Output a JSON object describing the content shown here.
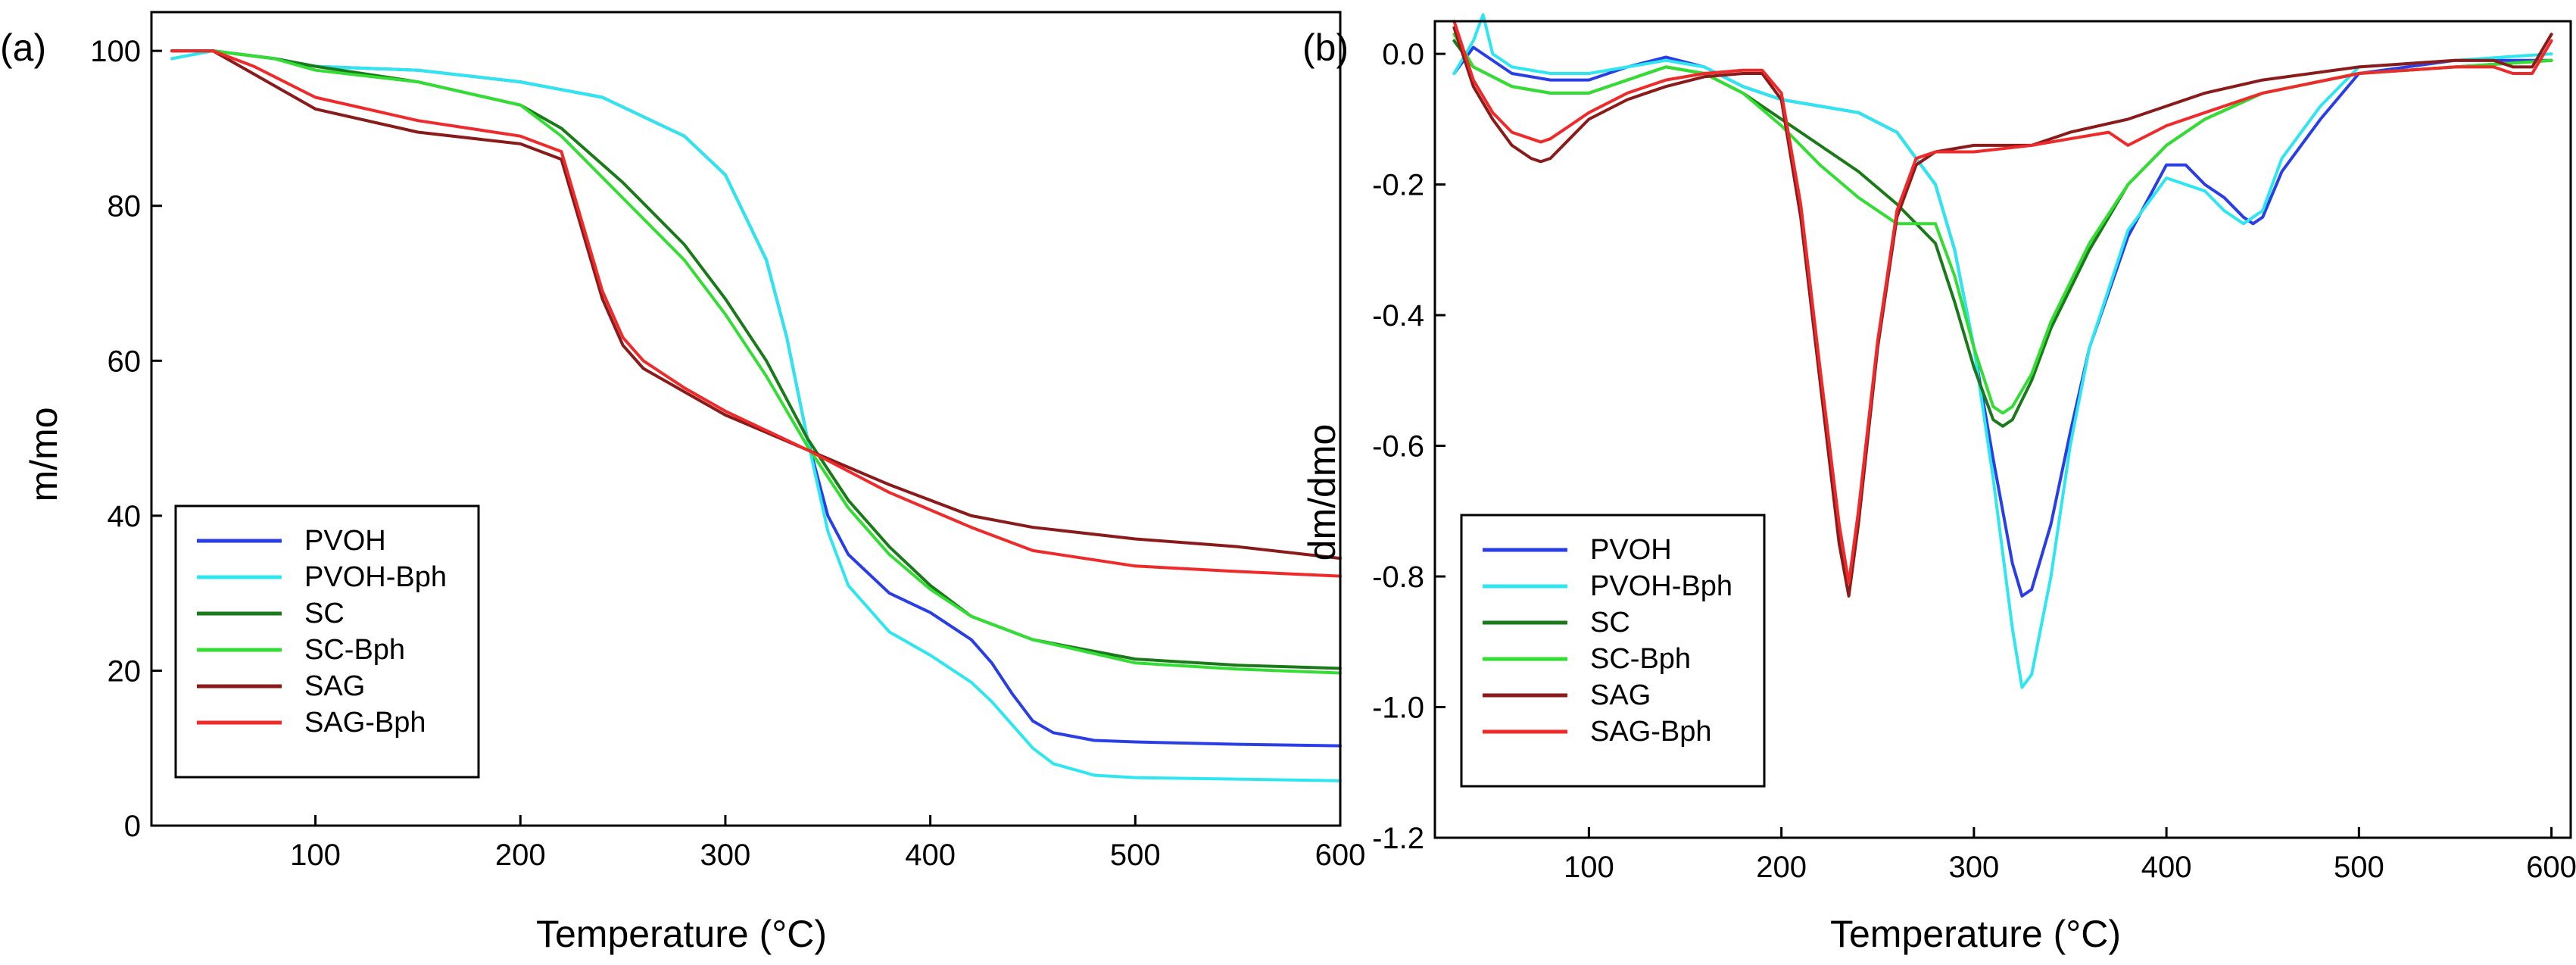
{
  "chart_data": [
    {
      "panel_label": "(a)",
      "type": "line",
      "xlabel": "Temperature (°C)",
      "ylabel": "m/mo",
      "xlim": [
        20,
        600
      ],
      "ylim": [
        0,
        105
      ],
      "xticks": [
        100,
        200,
        300,
        400,
        500,
        600
      ],
      "yticks": [
        0,
        20,
        40,
        60,
        80,
        100
      ],
      "legend_position": "bottom-left",
      "series": [
        {
          "name": "PVOH",
          "color": "#2a3ee6",
          "x": [
            30,
            50,
            80,
            100,
            150,
            200,
            240,
            280,
            300,
            320,
            330,
            340,
            350,
            360,
            380,
            400,
            420,
            430,
            440,
            450,
            460,
            480,
            500,
            550,
            600
          ],
          "y": [
            100,
            100,
            99,
            98,
            97.5,
            96,
            94,
            89,
            84,
            73,
            63,
            50,
            40,
            35,
            30,
            27.5,
            24,
            21,
            17,
            13.5,
            12,
            11,
            10.8,
            10.5,
            10.3
          ]
        },
        {
          "name": "PVOH-Bph",
          "color": "#2ee6f0",
          "x": [
            30,
            50,
            80,
            100,
            150,
            200,
            240,
            280,
            300,
            320,
            330,
            340,
            350,
            360,
            380,
            400,
            420,
            430,
            440,
            450,
            460,
            480,
            500,
            550,
            600
          ],
          "y": [
            99,
            100,
            99,
            98,
            97.5,
            96,
            94,
            89,
            84,
            73,
            63,
            50,
            38,
            31,
            25,
            22,
            18.5,
            16,
            13,
            10,
            8,
            6.5,
            6.2,
            6,
            5.8
          ]
        },
        {
          "name": "SC",
          "color": "#1a7a1a",
          "x": [
            30,
            50,
            80,
            100,
            150,
            200,
            220,
            250,
            280,
            300,
            320,
            340,
            360,
            380,
            400,
            420,
            450,
            500,
            550,
            600
          ],
          "y": [
            100,
            100,
            99,
            98,
            96,
            93,
            90,
            83,
            75,
            68,
            60,
            50,
            42,
            36,
            31,
            27,
            24,
            21.5,
            20.7,
            20.3
          ]
        },
        {
          "name": "SC-Bph",
          "color": "#33dd33",
          "x": [
            30,
            50,
            80,
            100,
            150,
            200,
            220,
            250,
            280,
            300,
            320,
            340,
            360,
            380,
            400,
            420,
            450,
            500,
            550,
            600
          ],
          "y": [
            100,
            100,
            99,
            97.5,
            96,
            93,
            89,
            81,
            73,
            66,
            58,
            49,
            41,
            35,
            30.5,
            27,
            24,
            21,
            20.2,
            19.7
          ]
        },
        {
          "name": "SAG",
          "color": "#8b1a1a",
          "x": [
            30,
            50,
            70,
            100,
            150,
            200,
            220,
            230,
            240,
            250,
            260,
            280,
            300,
            340,
            380,
            420,
            450,
            500,
            550,
            600
          ],
          "y": [
            100,
            100,
            97,
            92.5,
            89.5,
            88,
            86,
            77,
            68,
            62,
            59,
            56,
            53,
            48.5,
            44,
            40,
            38.5,
            37,
            36,
            34.5
          ]
        },
        {
          "name": "SAG-Bph",
          "color": "#ee2a2a",
          "x": [
            30,
            50,
            70,
            100,
            150,
            200,
            220,
            230,
            240,
            250,
            260,
            280,
            300,
            340,
            380,
            420,
            450,
            500,
            550,
            600
          ],
          "y": [
            100,
            100,
            98,
            94,
            91,
            89,
            87,
            78,
            69,
            63,
            60,
            56.5,
            53.5,
            48.5,
            43,
            38.5,
            35.5,
            33.5,
            32.8,
            32.2
          ]
        }
      ]
    },
    {
      "panel_label": "(b)",
      "type": "line",
      "xlabel": "Temperature (°C)",
      "ylabel": "dm/dmo",
      "xlim": [
        20,
        610
      ],
      "ylim": [
        -1.2,
        0.05
      ],
      "xticks": [
        100,
        200,
        300,
        400,
        500,
        600
      ],
      "yticks": [
        0.0,
        -0.2,
        -0.4,
        -0.6,
        -0.8,
        -1.0,
        -1.2
      ],
      "ytick_labels": [
        "0.0",
        "-0.2",
        "-0.4",
        "-0.6",
        "-0.8",
        "-1.0",
        "-1.2"
      ],
      "legend_position": "bottom-left",
      "series": [
        {
          "name": "PVOH",
          "color": "#2a3ee6",
          "x": [
            30,
            40,
            60,
            80,
            100,
            120,
            140,
            160,
            180,
            200,
            220,
            240,
            260,
            280,
            290,
            300,
            310,
            320,
            325,
            330,
            340,
            350,
            360,
            380,
            400,
            410,
            420,
            430,
            440,
            445,
            450,
            460,
            480,
            500,
            550,
            600
          ],
          "y": [
            -0.03,
            0.01,
            -0.03,
            -0.04,
            -0.04,
            -0.02,
            -0.005,
            -0.02,
            -0.05,
            -0.07,
            -0.08,
            -0.09,
            -0.12,
            -0.2,
            -0.3,
            -0.45,
            -0.62,
            -0.78,
            -0.83,
            -0.82,
            -0.72,
            -0.58,
            -0.45,
            -0.28,
            -0.17,
            -0.17,
            -0.2,
            -0.22,
            -0.25,
            -0.26,
            -0.25,
            -0.18,
            -0.1,
            -0.03,
            -0.01,
            -0.01
          ]
        },
        {
          "name": "PVOH-Bph",
          "color": "#2ee6f0",
          "x": [
            30,
            40,
            45,
            50,
            60,
            80,
            100,
            120,
            140,
            160,
            180,
            200,
            220,
            240,
            260,
            280,
            290,
            300,
            310,
            320,
            325,
            330,
            340,
            350,
            360,
            380,
            400,
            420,
            430,
            440,
            445,
            450,
            460,
            480,
            500,
            550,
            600
          ],
          "y": [
            -0.03,
            0.02,
            0.06,
            0.0,
            -0.02,
            -0.03,
            -0.03,
            -0.02,
            -0.01,
            -0.02,
            -0.05,
            -0.07,
            -0.08,
            -0.09,
            -0.12,
            -0.2,
            -0.3,
            -0.45,
            -0.65,
            -0.88,
            -0.97,
            -0.95,
            -0.8,
            -0.6,
            -0.45,
            -0.27,
            -0.19,
            -0.21,
            -0.24,
            -0.26,
            -0.25,
            -0.24,
            -0.16,
            -0.08,
            -0.02,
            -0.01,
            0.0
          ]
        },
        {
          "name": "SC",
          "color": "#1a7a1a",
          "x": [
            30,
            40,
            60,
            80,
            100,
            120,
            140,
            160,
            180,
            200,
            220,
            240,
            260,
            280,
            290,
            300,
            310,
            315,
            320,
            330,
            340,
            360,
            380,
            400,
            420,
            450,
            500,
            550,
            600
          ],
          "y": [
            0.02,
            -0.02,
            -0.05,
            -0.06,
            -0.06,
            -0.04,
            -0.02,
            -0.03,
            -0.06,
            -0.1,
            -0.14,
            -0.18,
            -0.23,
            -0.29,
            -0.38,
            -0.48,
            -0.56,
            -0.57,
            -0.56,
            -0.5,
            -0.42,
            -0.3,
            -0.2,
            -0.14,
            -0.1,
            -0.06,
            -0.03,
            -0.02,
            -0.01
          ]
        },
        {
          "name": "SC-Bph",
          "color": "#33dd33",
          "x": [
            30,
            40,
            60,
            80,
            100,
            120,
            140,
            160,
            180,
            200,
            220,
            240,
            260,
            280,
            290,
            300,
            310,
            315,
            320,
            330,
            340,
            360,
            380,
            400,
            420,
            450,
            500,
            550,
            600
          ],
          "y": [
            0.03,
            -0.02,
            -0.05,
            -0.06,
            -0.06,
            -0.04,
            -0.02,
            -0.03,
            -0.06,
            -0.11,
            -0.17,
            -0.22,
            -0.26,
            -0.26,
            -0.34,
            -0.45,
            -0.54,
            -0.55,
            -0.54,
            -0.49,
            -0.41,
            -0.29,
            -0.2,
            -0.14,
            -0.1,
            -0.06,
            -0.03,
            -0.02,
            -0.01
          ]
        },
        {
          "name": "SAG",
          "color": "#8b1a1a",
          "x": [
            30,
            40,
            50,
            60,
            70,
            75,
            80,
            90,
            100,
            120,
            140,
            160,
            180,
            190,
            200,
            210,
            220,
            230,
            235,
            240,
            250,
            260,
            270,
            280,
            300,
            330,
            350,
            380,
            400,
            420,
            450,
            500,
            550,
            570,
            580,
            590,
            600
          ],
          "y": [
            0.04,
            -0.05,
            -0.1,
            -0.14,
            -0.16,
            -0.165,
            -0.16,
            -0.13,
            -0.1,
            -0.07,
            -0.05,
            -0.035,
            -0.03,
            -0.03,
            -0.07,
            -0.25,
            -0.5,
            -0.75,
            -0.83,
            -0.72,
            -0.45,
            -0.25,
            -0.17,
            -0.15,
            -0.14,
            -0.14,
            -0.12,
            -0.1,
            -0.08,
            -0.06,
            -0.04,
            -0.02,
            -0.01,
            -0.01,
            -0.02,
            -0.02,
            0.03
          ]
        },
        {
          "name": "SAG-Bph",
          "color": "#ee2a2a",
          "x": [
            30,
            40,
            50,
            60,
            70,
            75,
            80,
            90,
            100,
            120,
            140,
            160,
            180,
            190,
            200,
            210,
            220,
            230,
            235,
            240,
            250,
            260,
            270,
            280,
            300,
            330,
            350,
            370,
            380,
            400,
            420,
            450,
            500,
            550,
            570,
            580,
            590,
            600
          ],
          "y": [
            0.05,
            -0.04,
            -0.09,
            -0.12,
            -0.13,
            -0.135,
            -0.13,
            -0.11,
            -0.09,
            -0.06,
            -0.04,
            -0.03,
            -0.025,
            -0.025,
            -0.06,
            -0.23,
            -0.48,
            -0.72,
            -0.81,
            -0.7,
            -0.44,
            -0.24,
            -0.16,
            -0.15,
            -0.15,
            -0.14,
            -0.13,
            -0.12,
            -0.14,
            -0.11,
            -0.09,
            -0.06,
            -0.03,
            -0.02,
            -0.02,
            -0.03,
            -0.03,
            0.02
          ]
        }
      ]
    }
  ]
}
